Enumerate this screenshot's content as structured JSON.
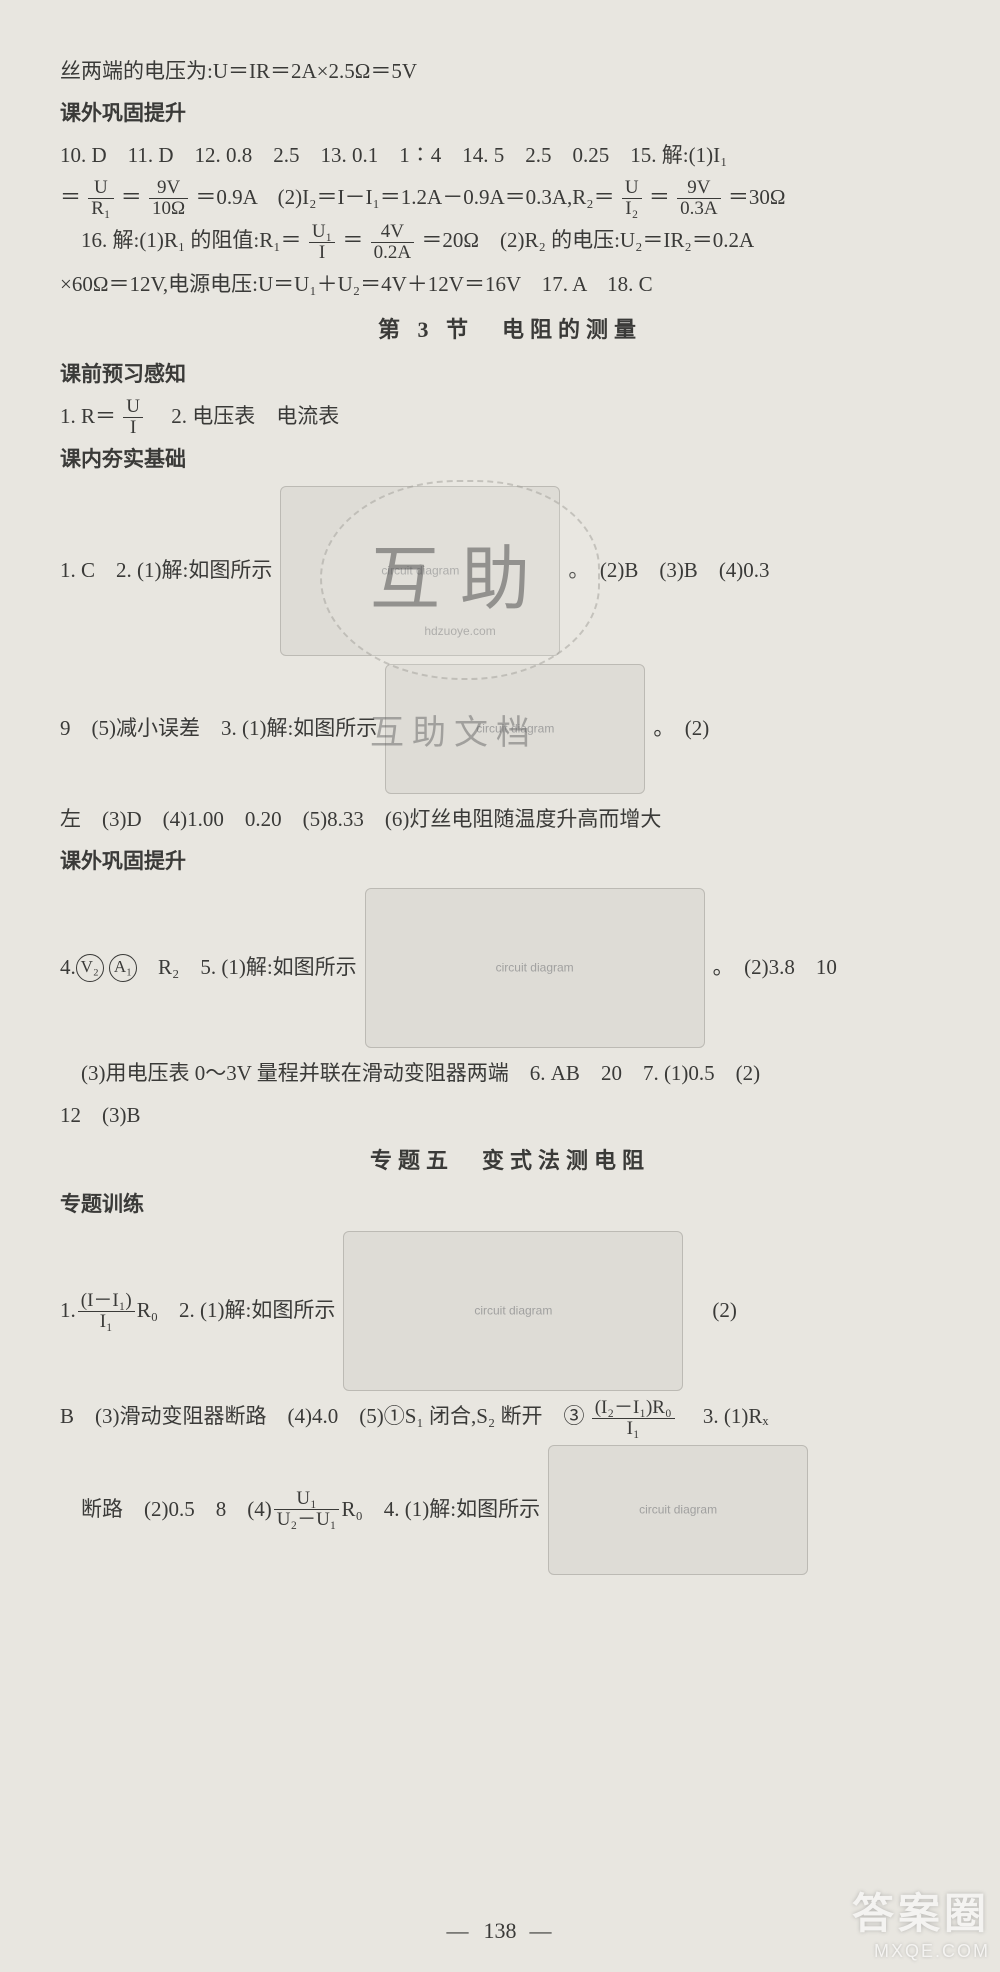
{
  "top_continuation": "丝两端的电压为:U＝IR＝2A×2.5Ω＝5V",
  "sect1": {
    "header": "课外巩固提升",
    "line1": "10. D　11. D　12. 0.8　2.5　13. 0.1　1∶4　14. 5　2.5　0.25　15. 解:(1)I₁",
    "line2_pre": "＝",
    "frac1": {
      "num": "U",
      "den": "R₁"
    },
    "eq1": "＝",
    "frac2": {
      "num": "9V",
      "den": "10Ω"
    },
    "post1": "＝0.9A　(2)I₂＝I－I₁＝1.2A－0.9A＝0.3A,R₂＝",
    "frac3": {
      "num": "U",
      "den": "I₂"
    },
    "eq2": "＝",
    "frac4": {
      "num": "9V",
      "den": "0.3A"
    },
    "post2": "＝30Ω",
    "line3_pre": "　16. 解:(1)R₁ 的阻值:R₁＝",
    "frac5": {
      "num": "U₁",
      "den": "I"
    },
    "eq3": "＝",
    "frac6": {
      "num": "4V",
      "den": "0.2A"
    },
    "post3": "＝20Ω　(2)R₂ 的电压:U₂＝IR₂＝0.2A",
    "line4": "×60Ω＝12V,电源电压:U＝U₁＋U₂＝4V＋12V＝16V　17. A　18. C"
  },
  "sect2": {
    "title": "第 3 节　电阻的测量",
    "sub1": "课前预习感知",
    "line1_pre": "1. R＝",
    "fracR": {
      "num": "U",
      "den": "I"
    },
    "line1_post": "　2. 电压表　电流表",
    "sub2": "课内夯实基础",
    "q1_pre": "1. C　2. (1)解:如图所示",
    "q1_post": "。　(2)B　(3)B　(4)0.3",
    "q2_pre": "9　(5)减小误差　3. (1)解:如图所示",
    "q2_post": "。　(2)",
    "q3": "左　(3)D　(4)1.00　0.20　(5)8.33　(6)灯丝电阻随温度升高而增大",
    "sub3": "课外巩固提升",
    "q4_pre": "4. ",
    "circ1": "V₂",
    "circ2": "A₁",
    "q4_mid": "　R₂　5. (1)解:如图所示",
    "q4_post": "。　(2)3.8　10",
    "q5": "　(3)用电压表 0～3V 量程并联在滑动变阻器两端　6. AB　20　7. (1)0.5　(2)",
    "q6": "12　(3)B"
  },
  "sect3": {
    "title": "专题五　变式法测电阻",
    "sub": "专题训练",
    "l1_pre": "1. ",
    "frac1": {
      "num": "(I－I₁)",
      "den": "I₁"
    },
    "l1_mid": "R₀　2. (1)解:如图所示",
    "l1_post": "　(2)",
    "l2_pre": "B　(3)滑动变阻器断路　(4)4.0　(5)①S₁ 闭合,S₂ 断开　③",
    "frac2": {
      "num": "(I₂－I₁)R₀",
      "den": "I₁"
    },
    "l2_post": "　3. (1)Rₓ",
    "l3_pre": "　断路　(2)0.5　8　(4)",
    "frac3": {
      "num": "U₁",
      "den": "U₂－U₁"
    },
    "l3_mid": "R₀　4. (1)解:如图所示",
    "l3_post": ""
  },
  "watermark": {
    "main": "互助",
    "site": "hdzuoye.com",
    "line2": "互助文档"
  },
  "page_number": "138",
  "logo": {
    "l1": "答案圈",
    "l2": "MXQE.COM"
  }
}
